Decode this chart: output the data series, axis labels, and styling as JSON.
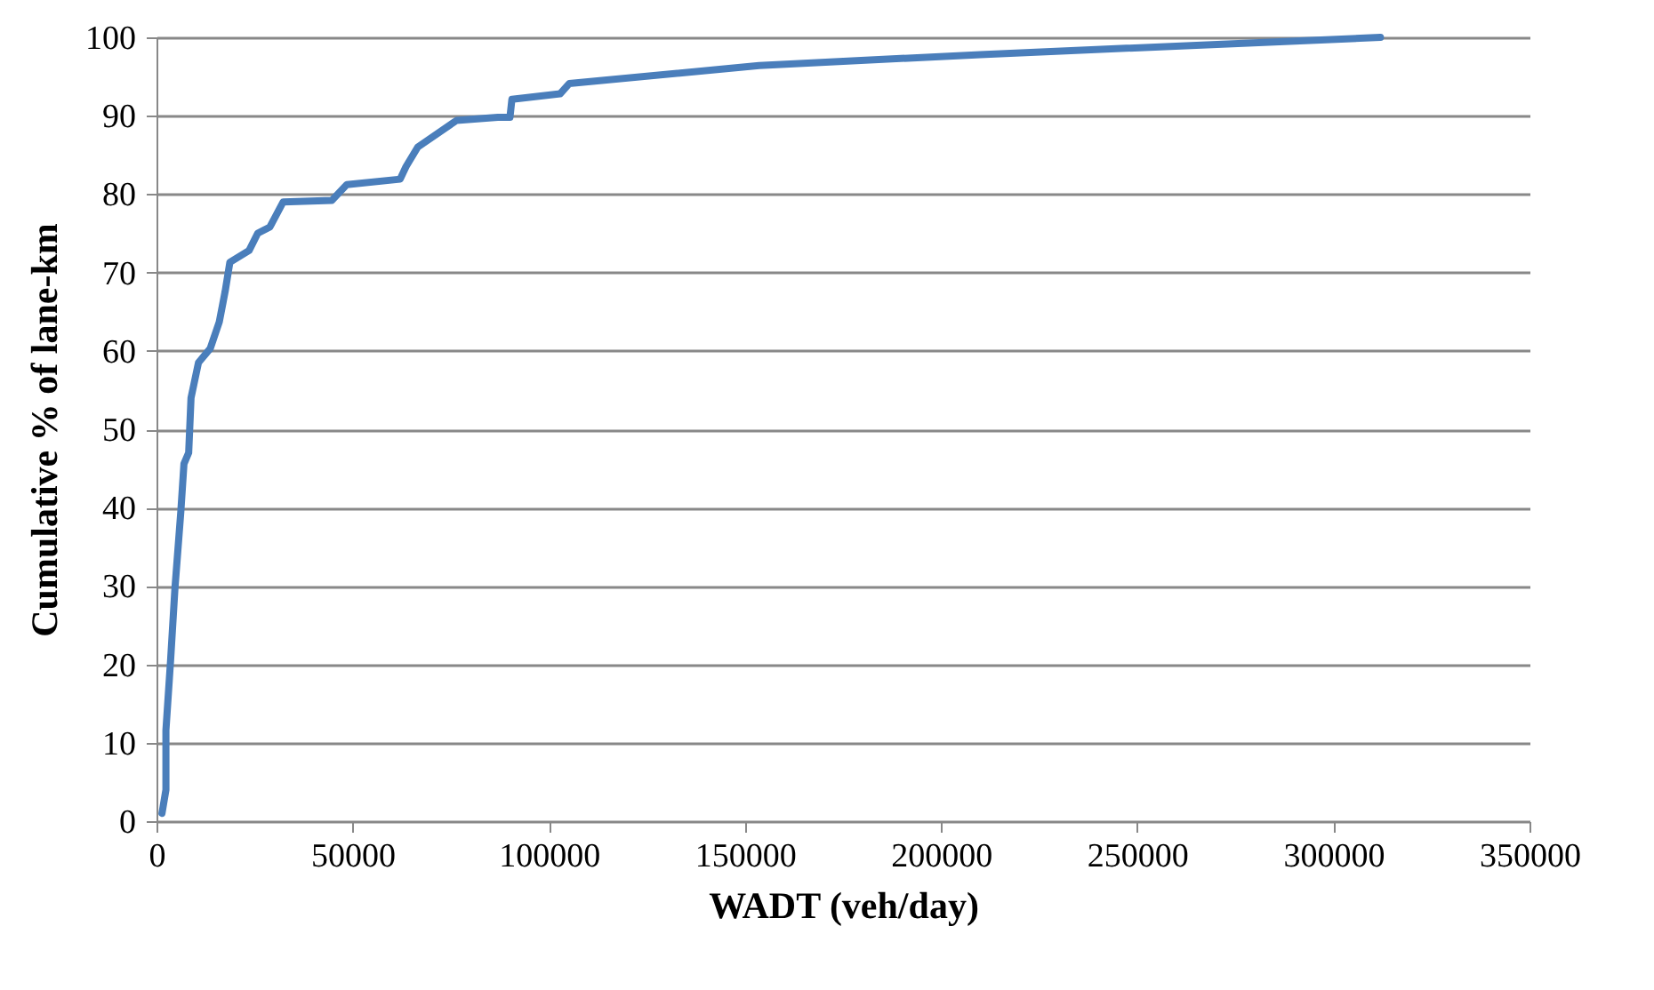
{
  "chart_data": {
    "type": "line",
    "xlabel": "WADT (veh/day)",
    "ylabel": "Cumulative % of lane-km",
    "x": [
      1400,
      2400,
      2400,
      3600,
      4700,
      6200,
      7000,
      8200,
      8800,
      10700,
      13700,
      16000,
      17500,
      18700,
      23600,
      25800,
      28900,
      32300,
      44700,
      48500,
      62100,
      63600,
      66600,
      76500,
      87000,
      90100,
      90600,
      102900,
      105200,
      153600,
      210000,
      312000
    ],
    "series": [
      {
        "color": "#4a7ebb",
        "values": [
          1,
          4,
          11.6,
          20.6,
          29.7,
          39.5,
          45.6,
          47,
          54,
          58.5,
          60.3,
          63.7,
          67.6,
          71.3,
          72.8,
          75,
          75.8,
          79,
          79.2,
          81.2,
          81.9,
          83.5,
          86,
          89.4,
          89.8,
          89.8,
          92.1,
          92.8,
          94.1,
          96.4,
          97.8,
          100
        ]
      }
    ],
    "xlim": [
      0,
      350000
    ],
    "xticks": [
      0,
      50000,
      100000,
      150000,
      200000,
      250000,
      300000,
      350000
    ],
    "ylim": [
      0,
      100
    ],
    "yticks": [
      0,
      10,
      20,
      30,
      40,
      50,
      60,
      70,
      80,
      90,
      100
    ],
    "grid": "y",
    "legend": false,
    "line_style": "solid"
  }
}
